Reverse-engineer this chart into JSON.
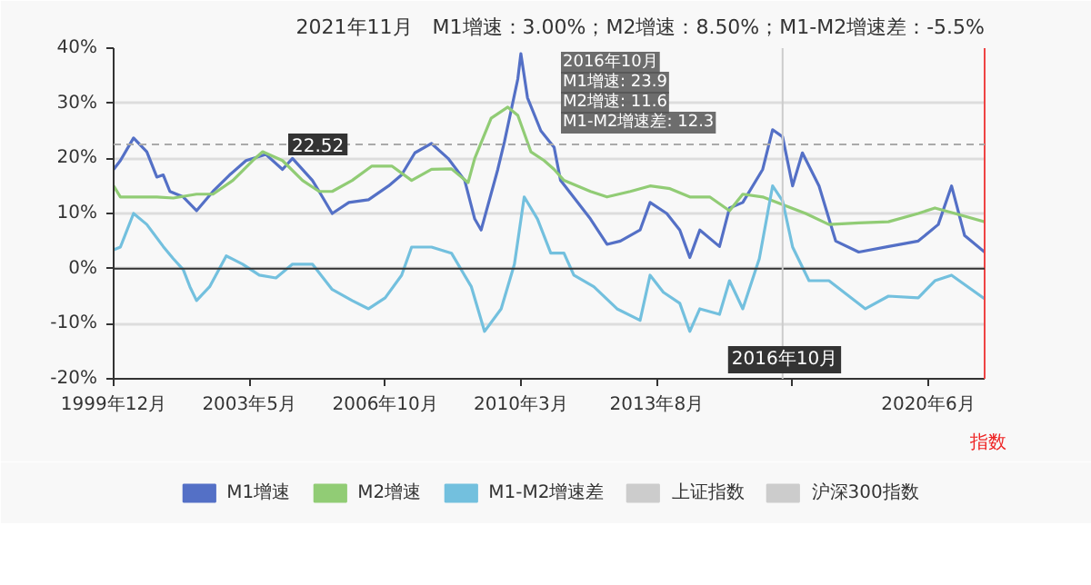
{
  "chart_data": {
    "type": "line",
    "title": "2021年11月　M1增速：3.00%；M2增速：8.50%；M1-M2增速差：-5.5%",
    "y2label": "指数",
    "xlim": [
      "1999-12",
      "2021-11"
    ],
    "xticks": [
      {
        "value": "1999-12",
        "label": "1999年12月"
      },
      {
        "value": "2003-05",
        "label": "2003年5月"
      },
      {
        "value": "2006-10",
        "label": "2006年10月"
      },
      {
        "value": "2010-03",
        "label": "2010年3月"
      },
      {
        "value": "2013-08",
        "label": "2013年8月"
      },
      {
        "value": "2017-01",
        "label": null
      },
      {
        "value": "2020-06",
        "label": "2020年6月"
      }
    ],
    "ylim": [
      -20,
      40
    ],
    "yticks": [
      {
        "value": -20,
        "label": "-20%"
      },
      {
        "value": -10,
        "label": "-10%"
      },
      {
        "value": 0,
        "label": "0%"
      },
      {
        "value": 10,
        "label": "10%"
      },
      {
        "value": 20,
        "label": "20%"
      },
      {
        "value": 30,
        "label": "30%"
      },
      {
        "value": 40,
        "label": "40%"
      }
    ],
    "grid": "y",
    "legend": "bottom",
    "marker": "none",
    "line_style": "solid",
    "ref_lines": [
      {
        "axis": "y",
        "value": 22.52,
        "label": "22.52",
        "color": "#aaaaaa",
        "line_style": "dashed"
      },
      {
        "axis": "x",
        "value": "2016-10",
        "label": "2016年10月",
        "color": "#cccccc",
        "line_style": "solid"
      }
    ],
    "annotations": [
      "2016年10月",
      "M1增速: 23.9",
      "M2增速: 11.6",
      "M1-M2增速差: 12.3"
    ],
    "series": [
      {
        "name": "M1增速",
        "color": "#5470c6",
        "x": [
          "1999-12",
          "2000-02",
          "2000-06",
          "2000-10",
          "2001-01",
          "2001-03",
          "2001-05",
          "2001-09",
          "2002-01",
          "2002-06",
          "2002-11",
          "2003-04",
          "2003-10",
          "2004-03",
          "2004-06",
          "2004-12",
          "2005-02",
          "2005-06",
          "2005-11",
          "2006-05",
          "2006-11",
          "2007-03",
          "2007-07",
          "2007-12",
          "2008-05",
          "2008-10",
          "2009-01",
          "2009-03",
          "2009-08",
          "2009-10",
          "2010-02",
          "2010-03",
          "2010-05",
          "2010-09",
          "2011-01",
          "2011-03",
          "2011-12",
          "2012-05",
          "2012-09",
          "2013-03",
          "2013-06",
          "2013-11",
          "2014-03",
          "2014-06",
          "2014-09",
          "2015-03",
          "2015-06",
          "2015-10",
          "2016-04",
          "2016-07",
          "2016-10",
          "2017-01",
          "2017-04",
          "2017-09",
          "2018-02",
          "2018-09",
          "2019-06",
          "2020-03",
          "2020-09",
          "2021-01",
          "2021-05",
          "2021-11"
        ],
        "values": [
          18,
          19.6,
          23.7,
          21.2,
          16.6,
          17,
          14,
          13,
          10.5,
          14,
          17,
          19.6,
          20.7,
          18,
          20,
          16,
          14,
          10,
          12,
          12.5,
          15,
          17,
          21,
          22.7,
          20,
          16,
          9,
          7,
          18,
          23,
          34.4,
          39,
          31,
          25,
          22,
          16,
          9,
          4.4,
          5,
          7,
          12,
          10,
          7,
          2,
          7,
          4,
          11,
          12,
          18,
          25.2,
          23.9,
          15,
          21,
          15,
          5,
          3,
          4,
          5,
          8,
          15,
          6,
          3
        ]
      },
      {
        "name": "M2增速",
        "color": "#91cc75",
        "x": [
          "1999-12",
          "2000-02",
          "2000-06",
          "2001-01",
          "2001-06",
          "2002-01",
          "2002-06",
          "2002-12",
          "2003-06",
          "2003-09",
          "2004-03",
          "2004-09",
          "2005-02",
          "2005-06",
          "2005-12",
          "2006-06",
          "2006-12",
          "2007-06",
          "2007-12",
          "2008-06",
          "2008-11",
          "2009-01",
          "2009-06",
          "2009-11",
          "2010-02",
          "2010-06",
          "2010-10",
          "2011-01",
          "2011-04",
          "2011-12",
          "2012-05",
          "2012-12",
          "2013-06",
          "2013-12",
          "2014-06",
          "2014-12",
          "2015-06",
          "2015-10",
          "2016-04",
          "2016-10",
          "2017-05",
          "2017-12",
          "2018-09",
          "2019-06",
          "2020-03",
          "2020-08",
          "2021-02",
          "2021-11"
        ],
        "values": [
          15,
          13,
          13,
          13,
          12.8,
          13.5,
          13.5,
          16,
          19.6,
          21.2,
          19.6,
          16,
          14,
          14,
          16,
          18.6,
          18.6,
          16,
          18,
          18.1,
          15.6,
          20,
          27.3,
          29.3,
          27.8,
          21.2,
          19.6,
          18,
          16,
          14,
          13,
          14,
          15,
          14.5,
          13,
          13,
          10.5,
          13.5,
          13,
          11.6,
          10,
          8,
          8.3,
          8.5,
          10,
          11,
          10,
          8.5
        ]
      },
      {
        "name": "M1-M2增速差",
        "color": "#73c0de",
        "x": [
          "1999-12",
          "2000-02",
          "2000-06",
          "2000-10",
          "2001-03",
          "2001-06",
          "2001-09",
          "2001-11",
          "2002-01",
          "2002-05",
          "2002-10",
          "2003-03",
          "2003-08",
          "2004-01",
          "2004-06",
          "2004-12",
          "2005-06",
          "2005-12",
          "2006-05",
          "2006-10",
          "2007-03",
          "2007-06",
          "2007-12",
          "2008-06",
          "2008-12",
          "2009-04",
          "2009-09",
          "2010-01",
          "2010-04",
          "2010-08",
          "2010-12",
          "2011-04",
          "2011-07",
          "2012-01",
          "2012-08",
          "2013-03",
          "2013-06",
          "2013-10",
          "2014-03",
          "2014-06",
          "2014-09",
          "2015-03",
          "2015-06",
          "2015-10",
          "2016-03",
          "2016-07",
          "2016-10",
          "2017-01",
          "2017-06",
          "2017-12",
          "2018-11",
          "2019-06",
          "2020-03",
          "2020-08",
          "2021-01",
          "2021-11"
        ],
        "values": [
          3.4,
          3.9,
          10,
          8,
          4,
          1.8,
          -0.2,
          -3.3,
          -5.8,
          -3.3,
          2.3,
          0.8,
          -1.2,
          -1.7,
          0.8,
          0.8,
          -3.8,
          -5.8,
          -7.3,
          -5.3,
          -1.2,
          3.9,
          3.9,
          2.8,
          -3.3,
          -11.4,
          -7.3,
          0.8,
          13,
          9,
          2.8,
          2.8,
          -1.2,
          -3.3,
          -7.3,
          -9.4,
          -1.2,
          -4.3,
          -6.3,
          -11.4,
          -7.3,
          -8.3,
          -2.2,
          -7.3,
          1.8,
          15,
          12.3,
          3.9,
          -2.2,
          -2.2,
          -7.3,
          -5,
          -5.3,
          -2.2,
          -1.2,
          -5.5
        ]
      },
      {
        "name": "上证指数",
        "color": "#cccccc",
        "axis": "y2"
      },
      {
        "name": "沪深300指数",
        "color": "#cccccc",
        "axis": "y2"
      }
    ]
  }
}
